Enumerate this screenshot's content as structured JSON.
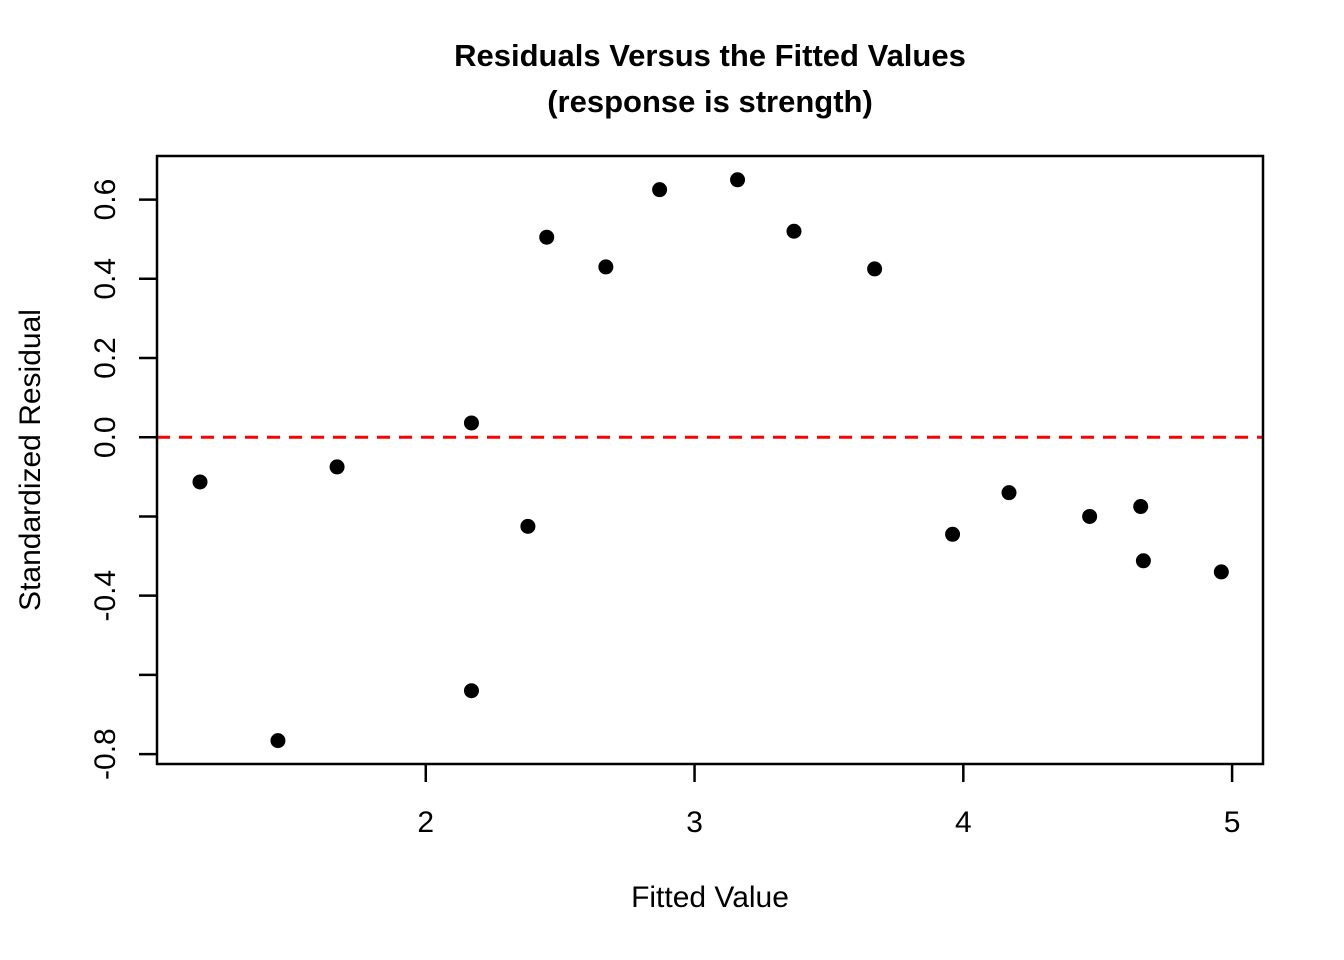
{
  "title": {
    "line1": "Residuals Versus the Fitted Values",
    "line2": "(response is strength)"
  },
  "axes": {
    "xlabel": "Fitted Value",
    "ylabel": "Standardized Residual"
  },
  "colors": {
    "background": "#FFFFFF",
    "point": "#000000",
    "axis": "#000000",
    "zero_line": "#FF0000"
  },
  "chart_data": {
    "type": "scatter",
    "title": "Residuals Versus the Fitted Values",
    "subtitle": "(response is strength)",
    "xlabel": "Fitted Value",
    "ylabel": "Standardized Residual",
    "xlim": [
      1.0,
      5.115
    ],
    "ylim": [
      -0.825,
      0.71
    ],
    "grid": false,
    "legend": null,
    "x_ticks": {
      "values": [
        2,
        3,
        4,
        5
      ],
      "labels": [
        "2",
        "3",
        "4",
        "5"
      ]
    },
    "y_ticks": {
      "values": [
        0.6,
        0.4,
        0.2,
        0.0,
        -0.2,
        -0.4,
        -0.6,
        -0.8
      ],
      "labels": [
        "0.6",
        "0.4",
        "0.2",
        "0.0",
        "",
        "-0.4",
        "",
        "-0.8"
      ]
    },
    "reference_line": {
      "y": 0.0,
      "style": "dashed",
      "color": "#FF0000"
    },
    "points": [
      {
        "x": 1.16,
        "y": -0.113
      },
      {
        "x": 1.45,
        "y": -0.766
      },
      {
        "x": 1.67,
        "y": -0.075
      },
      {
        "x": 2.17,
        "y": 0.036
      },
      {
        "x": 2.17,
        "y": -0.64
      },
      {
        "x": 2.38,
        "y": -0.225
      },
      {
        "x": 2.45,
        "y": 0.505
      },
      {
        "x": 2.67,
        "y": 0.43
      },
      {
        "x": 2.87,
        "y": 0.625
      },
      {
        "x": 3.16,
        "y": 0.65
      },
      {
        "x": 3.37,
        "y": 0.52
      },
      {
        "x": 3.67,
        "y": 0.425
      },
      {
        "x": 3.96,
        "y": -0.245
      },
      {
        "x": 4.17,
        "y": -0.14
      },
      {
        "x": 4.47,
        "y": -0.2
      },
      {
        "x": 4.66,
        "y": -0.175
      },
      {
        "x": 4.67,
        "y": -0.312
      },
      {
        "x": 4.96,
        "y": -0.34
      }
    ]
  }
}
